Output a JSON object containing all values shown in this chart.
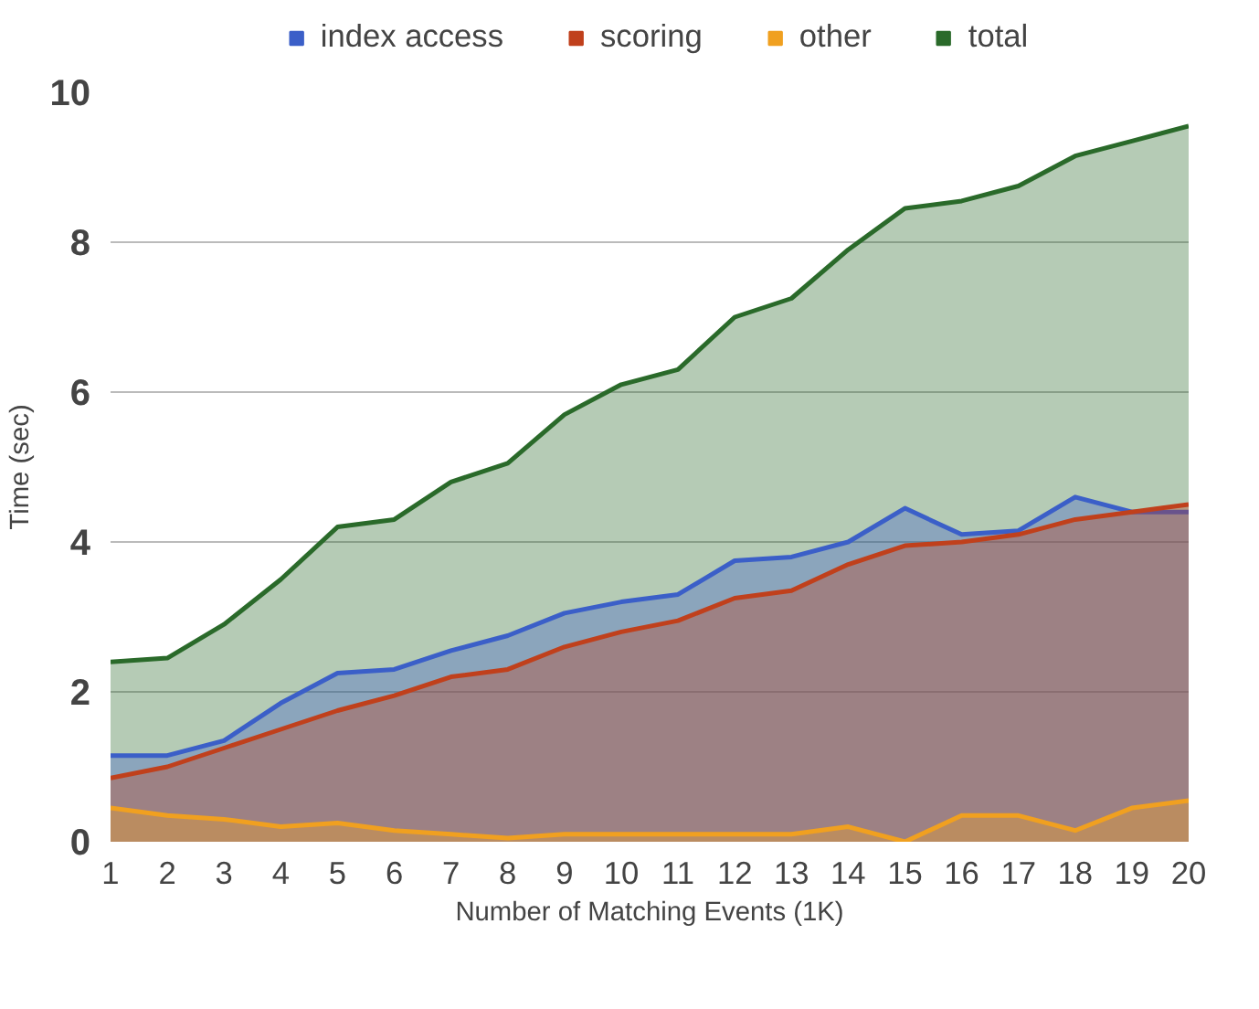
{
  "chart_data": {
    "type": "area",
    "xlabel": "Number of Matching Events (1K)",
    "ylabel": "Time (sec)",
    "x": [
      1,
      2,
      3,
      4,
      5,
      6,
      7,
      8,
      9,
      10,
      11,
      12,
      13,
      14,
      15,
      16,
      17,
      18,
      19,
      20
    ],
    "series": [
      {
        "name": "index access",
        "color": "#3b5fc8",
        "values": [
          1.15,
          1.15,
          1.35,
          1.85,
          2.25,
          2.3,
          2.55,
          2.75,
          3.05,
          3.2,
          3.3,
          3.75,
          3.8,
          4.0,
          4.45,
          4.1,
          4.15,
          4.6,
          4.4,
          4.4
        ]
      },
      {
        "name": "scoring",
        "color": "#c0401c",
        "values": [
          0.85,
          1.0,
          1.25,
          1.5,
          1.75,
          1.95,
          2.2,
          2.3,
          2.6,
          2.8,
          2.95,
          3.25,
          3.35,
          3.7,
          3.95,
          4.0,
          4.1,
          4.3,
          4.4,
          4.5
        ]
      },
      {
        "name": "other",
        "color": "#f0a020",
        "values": [
          0.45,
          0.35,
          0.3,
          0.2,
          0.25,
          0.15,
          0.1,
          0.05,
          0.1,
          0.1,
          0.1,
          0.1,
          0.1,
          0.2,
          0.0,
          0.35,
          0.35,
          0.15,
          0.45,
          0.55
        ]
      },
      {
        "name": "total",
        "color": "#2a6a2a",
        "values": [
          2.4,
          2.45,
          2.9,
          3.5,
          4.2,
          4.3,
          4.8,
          5.05,
          5.7,
          6.1,
          6.3,
          7.0,
          7.25,
          7.9,
          8.45,
          8.55,
          8.75,
          9.15,
          9.35,
          9.55
        ]
      }
    ],
    "xlim": [
      1,
      20
    ],
    "xticks": [
      1,
      2,
      3,
      4,
      5,
      6,
      7,
      8,
      9,
      10,
      11,
      12,
      13,
      14,
      15,
      16,
      17,
      18,
      19,
      20
    ],
    "ylim": [
      0,
      10
    ],
    "yticks": [
      0,
      2,
      4,
      6,
      8,
      10
    ],
    "grid": "y",
    "legend": "top",
    "marker": "none",
    "line_style": "solid"
  }
}
